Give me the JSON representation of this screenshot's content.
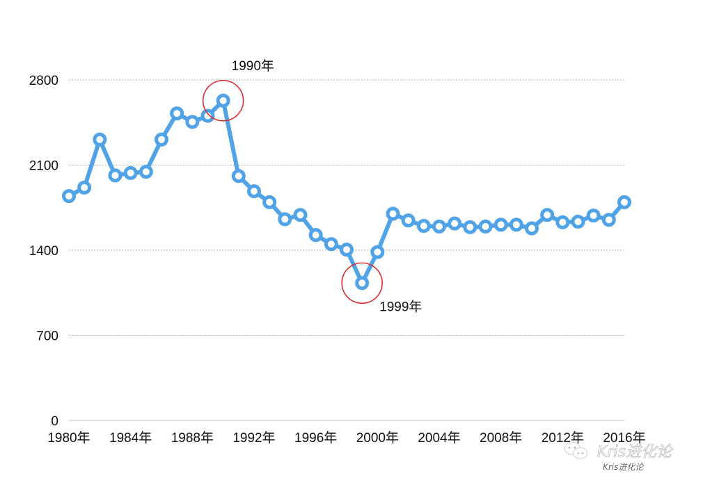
{
  "chart_data": {
    "type": "line",
    "x": [
      "1980",
      "1981",
      "1982",
      "1983",
      "1984",
      "1985",
      "1986",
      "1987",
      "1988",
      "1989",
      "1990",
      "1991",
      "1992",
      "1993",
      "1994",
      "1995",
      "1996",
      "1997",
      "1998",
      "1999",
      "2000",
      "2001",
      "2002",
      "2003",
      "2004",
      "2005",
      "2006",
      "2007",
      "2008",
      "2009",
      "2010",
      "2011",
      "2012",
      "2013",
      "2014",
      "2015",
      "2016"
    ],
    "values": [
      1845,
      1915,
      2310,
      2015,
      2035,
      2045,
      2310,
      2525,
      2455,
      2505,
      2630,
      2010,
      1885,
      1795,
      1655,
      1690,
      1525,
      1450,
      1405,
      1130,
      1385,
      1700,
      1645,
      1600,
      1595,
      1620,
      1590,
      1595,
      1610,
      1610,
      1580,
      1690,
      1630,
      1635,
      1685,
      1650,
      1795
    ],
    "x_tick_labels": [
      "1980年",
      "1984年",
      "1988年",
      "1992年",
      "1996年",
      "2000年",
      "2004年",
      "2008年",
      "2012年",
      "2016年"
    ],
    "y_ticks": [
      0,
      700,
      1400,
      2100,
      2800
    ],
    "ylim": [
      0,
      2800
    ],
    "grid": "horizontal-dotted",
    "series_color": "#4fa3e6",
    "highlight_color": "#d9302f",
    "annotations": [
      {
        "x": "1990",
        "label": "1990年"
      },
      {
        "x": "1999",
        "label": "1999年"
      }
    ]
  },
  "watermark": {
    "main": "Kris进化论",
    "sub": "Kris进化论",
    "icon": "wechat-icon"
  }
}
